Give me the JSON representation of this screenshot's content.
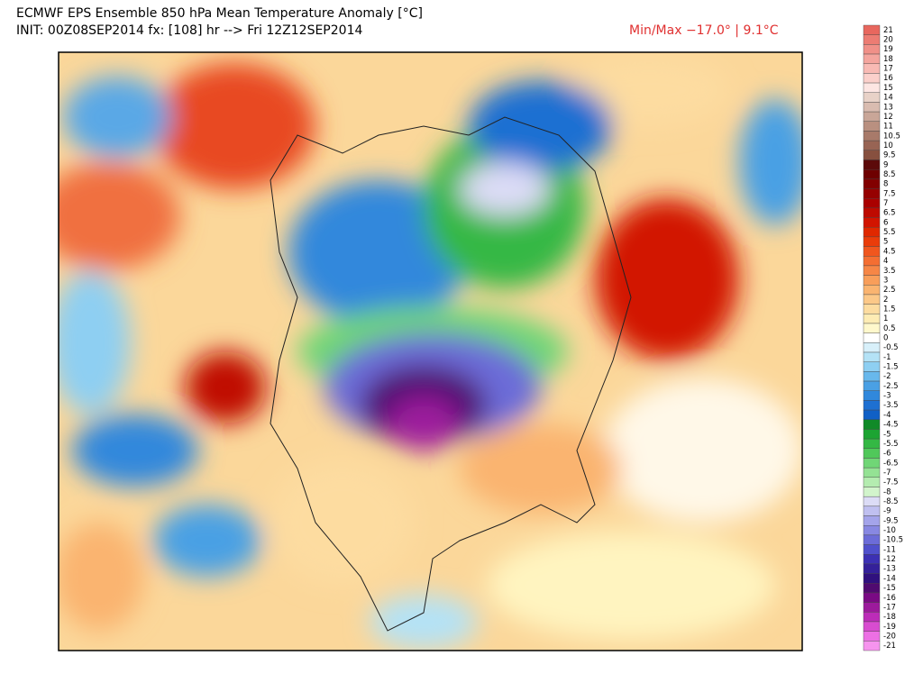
{
  "header": {
    "title": "ECMWF EPS Ensemble 850 hPa Mean Temperature Anomaly [°C]",
    "init": "INIT: 00Z08SEP2014 fx: [108] hr --> Fri 12Z12SEP2014",
    "minmax": "Min/Max −17.0° |  9.1°C"
  },
  "colorbar": {
    "labels": [
      "21",
      "20",
      "19",
      "18",
      "17",
      "16",
      "15",
      "14",
      "13",
      "12",
      "11",
      "10.5",
      "10",
      "9.5",
      "9",
      "8.5",
      "8",
      "7.5",
      "7",
      "6.5",
      "6",
      "5.5",
      "5",
      "4.5",
      "4",
      "3.5",
      "3",
      "2.5",
      "2",
      "1.5",
      "1",
      "0.5",
      "0",
      "-0.5",
      "-1",
      "-1.5",
      "-2",
      "-2.5",
      "-3",
      "-3.5",
      "-4",
      "-4.5",
      "-5",
      "-5.5",
      "-6",
      "-6.5",
      "-7",
      "-7.5",
      "-8",
      "-8.5",
      "-9",
      "-9.5",
      "-10",
      "-10.5",
      "-11",
      "-12",
      "-13",
      "-14",
      "-15",
      "-16",
      "-17",
      "-18",
      "-19",
      "-20",
      "-21"
    ],
    "colors": [
      "#e8675e",
      "#ec7c73",
      "#f09088",
      "#f4a59e",
      "#f8bab4",
      "#fbd0cb",
      "#fde6e3",
      "#e8d2c8",
      "#d9bcb0",
      "#c9a698",
      "#b99080",
      "#a87a6a",
      "#986454",
      "#87503f",
      "#5c0a0a",
      "#6e0000",
      "#820000",
      "#960000",
      "#aa0000",
      "#be0a00",
      "#d21400",
      "#e02800",
      "#ea3c0a",
      "#f0561e",
      "#f46e32",
      "#f68646",
      "#f89e5a",
      "#fab470",
      "#fcc888",
      "#fddca0",
      "#feecb4",
      "#fff8cc",
      "#ffffff",
      "#d8f0fa",
      "#b4e2f6",
      "#8ecff2",
      "#68b8ec",
      "#4aa0e4",
      "#3088dc",
      "#1e70d2",
      "#1060c6",
      "#108a28",
      "#1ca432",
      "#34b844",
      "#50c85a",
      "#70d676",
      "#94e294",
      "#b4ecb0",
      "#d2f4cc",
      "#dcdcf6",
      "#c0c0f0",
      "#a4a4ea",
      "#8888e2",
      "#6c6cd8",
      "#5050cc",
      "#3c30b4",
      "#34209a",
      "#30107e",
      "#500a70",
      "#7a0a84",
      "#9c1a9c",
      "#bc2cb8",
      "#d84cd0",
      "#ec70e4",
      "#f694ee"
    ]
  }
}
